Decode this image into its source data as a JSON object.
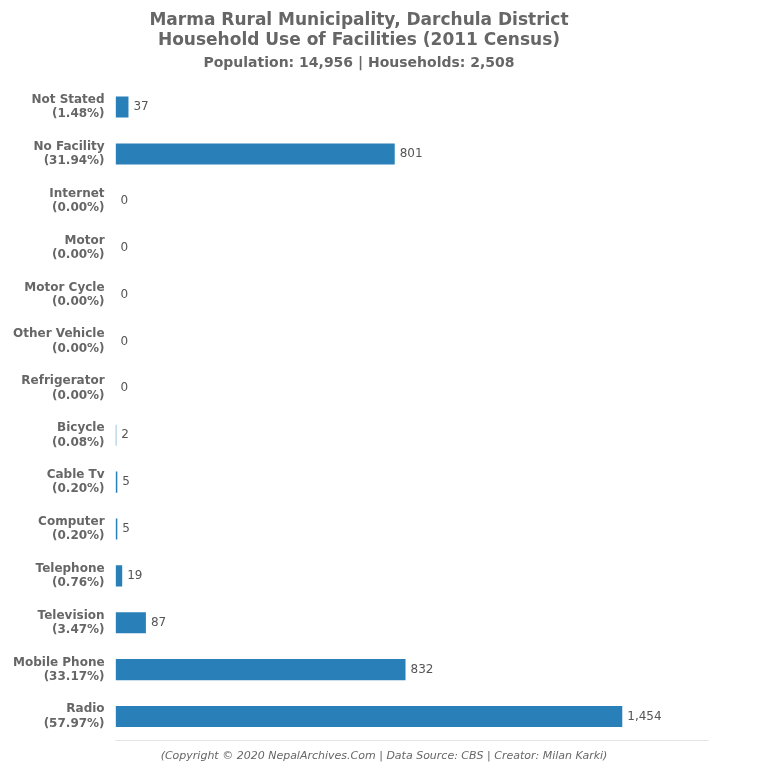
{
  "chart_data": {
    "type": "bar",
    "orientation": "horizontal",
    "title": [
      "Marma Rural Municipality, Darchula District",
      "Household Use of Facilities (2011 Census)"
    ],
    "subtitle": "Population: 14,956 | Households: 2,508",
    "footer": "(Copyright © 2020 NepalArchives.Com | Data Source: CBS | Creator: Milan Karki)",
    "categories": [
      "Radio\n(57.97%)",
      "Mobile Phone\n(33.17%)",
      "Television\n(3.47%)",
      "Telephone\n(0.76%)",
      "Computer\n(0.20%)",
      "Cable Tv\n(0.20%)",
      "Bicycle\n(0.08%)",
      "Refrigerator\n(0.00%)",
      "Other Vehicle\n(0.00%)",
      "Motor Cycle\n(0.00%)",
      "Motor\n(0.00%)",
      "Internet\n(0.00%)",
      "No Facility\n(31.94%)",
      "Not Stated\n(1.48%)"
    ],
    "values": [
      1454,
      832,
      87,
      19,
      5,
      5,
      2,
      0,
      0,
      0,
      0,
      0,
      801,
      37
    ],
    "value_labels": [
      "1,454",
      "832",
      "87",
      "19",
      "5",
      "5",
      "2",
      "0",
      "0",
      "0",
      "0",
      "0",
      "801",
      "37"
    ],
    "data_labels": true,
    "color": "#2980b9",
    "xlim": [
      0,
      1700
    ],
    "tick_labels": "y",
    "grid": false
  }
}
